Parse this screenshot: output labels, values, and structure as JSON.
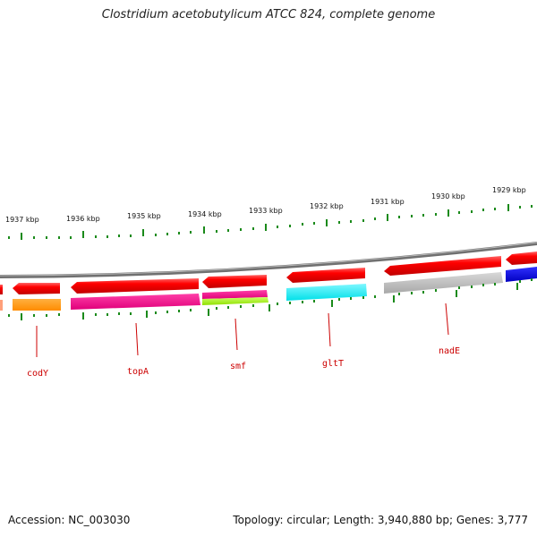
{
  "title": "Clostridium acetobutylicum ATCC 824, complete genome",
  "footer": {
    "accession": "Accession: NC_003030",
    "summary": "Topology: circular; Length: 3,940,880 bp; Genes: 3,777"
  },
  "colors": {
    "tick": "#1a8a1a",
    "backbone": "#808080",
    "gene_label": "#cc0000",
    "forward_gene": "#ff0000"
  },
  "position_labels": [
    "1937 kbp",
    "1936 kbp",
    "1935 kbp",
    "1934 kbp",
    "1933 kbp",
    "1932 kbp",
    "1931 kbp",
    "1930 kbp",
    "1929 kbp"
  ],
  "gene_labels": [
    "codY",
    "topA",
    "smf",
    "gltT",
    "nadE"
  ]
}
